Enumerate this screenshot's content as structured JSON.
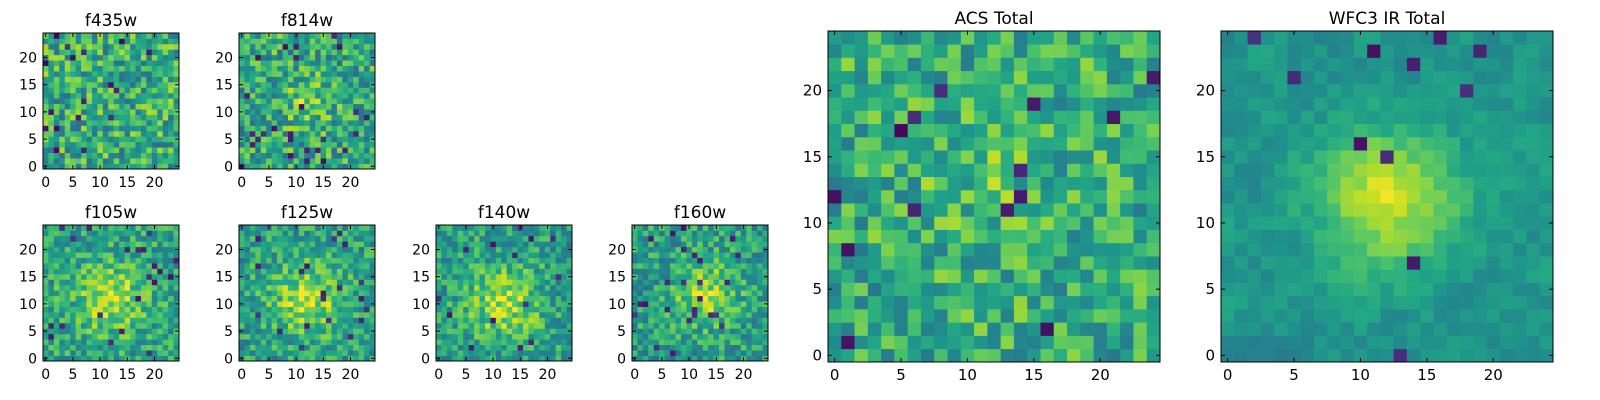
{
  "figure": {
    "description_hidden": ""
  },
  "colormap": "viridis",
  "chart_data": [
    {
      "type": "heatmap",
      "title": "f435w",
      "grid_size": 25,
      "xticks": [
        0,
        5,
        10,
        15,
        20
      ],
      "yticks": [
        0,
        5,
        10,
        15,
        20
      ],
      "xlim": [
        -0.5,
        24.5
      ],
      "ylim": [
        -0.5,
        24.5
      ],
      "pattern": {
        "seed": 11,
        "mean": 0.62,
        "noise": 0.26,
        "blob": 0.0,
        "blob_center": [
          12,
          12
        ],
        "blob_sigma": 4,
        "dark_fraction": 0.04,
        "dark_level": 0.02
      }
    },
    {
      "type": "heatmap",
      "title": "f814w",
      "grid_size": 25,
      "xticks": [
        0,
        5,
        10,
        15,
        20
      ],
      "yticks": [
        0,
        5,
        10,
        15,
        20
      ],
      "xlim": [
        -0.5,
        24.5
      ],
      "ylim": [
        -0.5,
        24.5
      ],
      "pattern": {
        "seed": 23,
        "mean": 0.6,
        "noise": 0.25,
        "blob": 0.18,
        "blob_center": [
          12,
          12
        ],
        "blob_sigma": 3,
        "dark_fraction": 0.035,
        "dark_level": 0.03
      }
    },
    {
      "type": "heatmap",
      "title": "f105w",
      "grid_size": 25,
      "xticks": [
        0,
        5,
        10,
        15,
        20
      ],
      "yticks": [
        0,
        5,
        10,
        15,
        20
      ],
      "xlim": [
        -0.5,
        24.5
      ],
      "ylim": [
        -0.5,
        24.5
      ],
      "pattern": {
        "seed": 37,
        "mean": 0.58,
        "noise": 0.2,
        "blob": 0.3,
        "blob_center": [
          12,
          11
        ],
        "blob_sigma": 4.5,
        "dark_fraction": 0.035,
        "dark_level": 0.05
      }
    },
    {
      "type": "heatmap",
      "title": "f125w",
      "grid_size": 25,
      "xticks": [
        0,
        5,
        10,
        15,
        20
      ],
      "yticks": [
        0,
        5,
        10,
        15,
        20
      ],
      "xlim": [
        -0.5,
        24.5
      ],
      "ylim": [
        -0.5,
        24.5
      ],
      "pattern": {
        "seed": 41,
        "mean": 0.56,
        "noise": 0.2,
        "blob": 0.32,
        "blob_center": [
          12,
          11
        ],
        "blob_sigma": 4.5,
        "dark_fraction": 0.03,
        "dark_level": 0.06
      }
    },
    {
      "type": "heatmap",
      "title": "f140w",
      "grid_size": 25,
      "xticks": [
        0,
        5,
        10,
        15,
        20
      ],
      "yticks": [
        0,
        5,
        10,
        15,
        20
      ],
      "xlim": [
        -0.5,
        24.5
      ],
      "ylim": [
        -0.5,
        24.5
      ],
      "pattern": {
        "seed": 53,
        "mean": 0.56,
        "noise": 0.2,
        "blob": 0.32,
        "blob_center": [
          12,
          10
        ],
        "blob_sigma": 4.5,
        "dark_fraction": 0.03,
        "dark_level": 0.05
      }
    },
    {
      "type": "heatmap",
      "title": "f160w",
      "grid_size": 25,
      "xticks": [
        0,
        5,
        10,
        15,
        20
      ],
      "yticks": [
        0,
        5,
        10,
        15,
        20
      ],
      "xlim": [
        -0.5,
        24.5
      ],
      "ylim": [
        -0.5,
        24.5
      ],
      "pattern": {
        "seed": 67,
        "mean": 0.56,
        "noise": 0.2,
        "blob": 0.3,
        "blob_center": [
          13,
          12
        ],
        "blob_sigma": 4,
        "dark_fraction": 0.03,
        "dark_level": 0.06
      }
    },
    {
      "type": "heatmap",
      "title": "ACS Total",
      "grid_size": 25,
      "xticks": [
        0,
        5,
        10,
        15,
        20
      ],
      "yticks": [
        0,
        5,
        10,
        15,
        20
      ],
      "xlim": [
        -0.5,
        24.5
      ],
      "ylim": [
        -0.5,
        24.5
      ],
      "pattern": {
        "seed": 79,
        "mean": 0.62,
        "noise": 0.22,
        "blob": 0.08,
        "blob_center": [
          12,
          13
        ],
        "blob_sigma": 4,
        "dark_fraction": 0.035,
        "dark_level": 0.02
      }
    },
    {
      "type": "heatmap",
      "title": "WFC3 IR Total",
      "grid_size": 25,
      "xticks": [
        0,
        5,
        10,
        15,
        20
      ],
      "yticks": [
        0,
        5,
        10,
        15,
        20
      ],
      "xlim": [
        -0.5,
        24.5
      ],
      "ylim": [
        -0.5,
        24.5
      ],
      "pattern": {
        "seed": 97,
        "mean": 0.52,
        "noise": 0.13,
        "blob": 0.42,
        "blob_center": [
          12,
          12
        ],
        "blob_sigma": 3.5,
        "dark_fraction": 0.025,
        "dark_level": 0.04,
        "smooth": true
      }
    }
  ]
}
